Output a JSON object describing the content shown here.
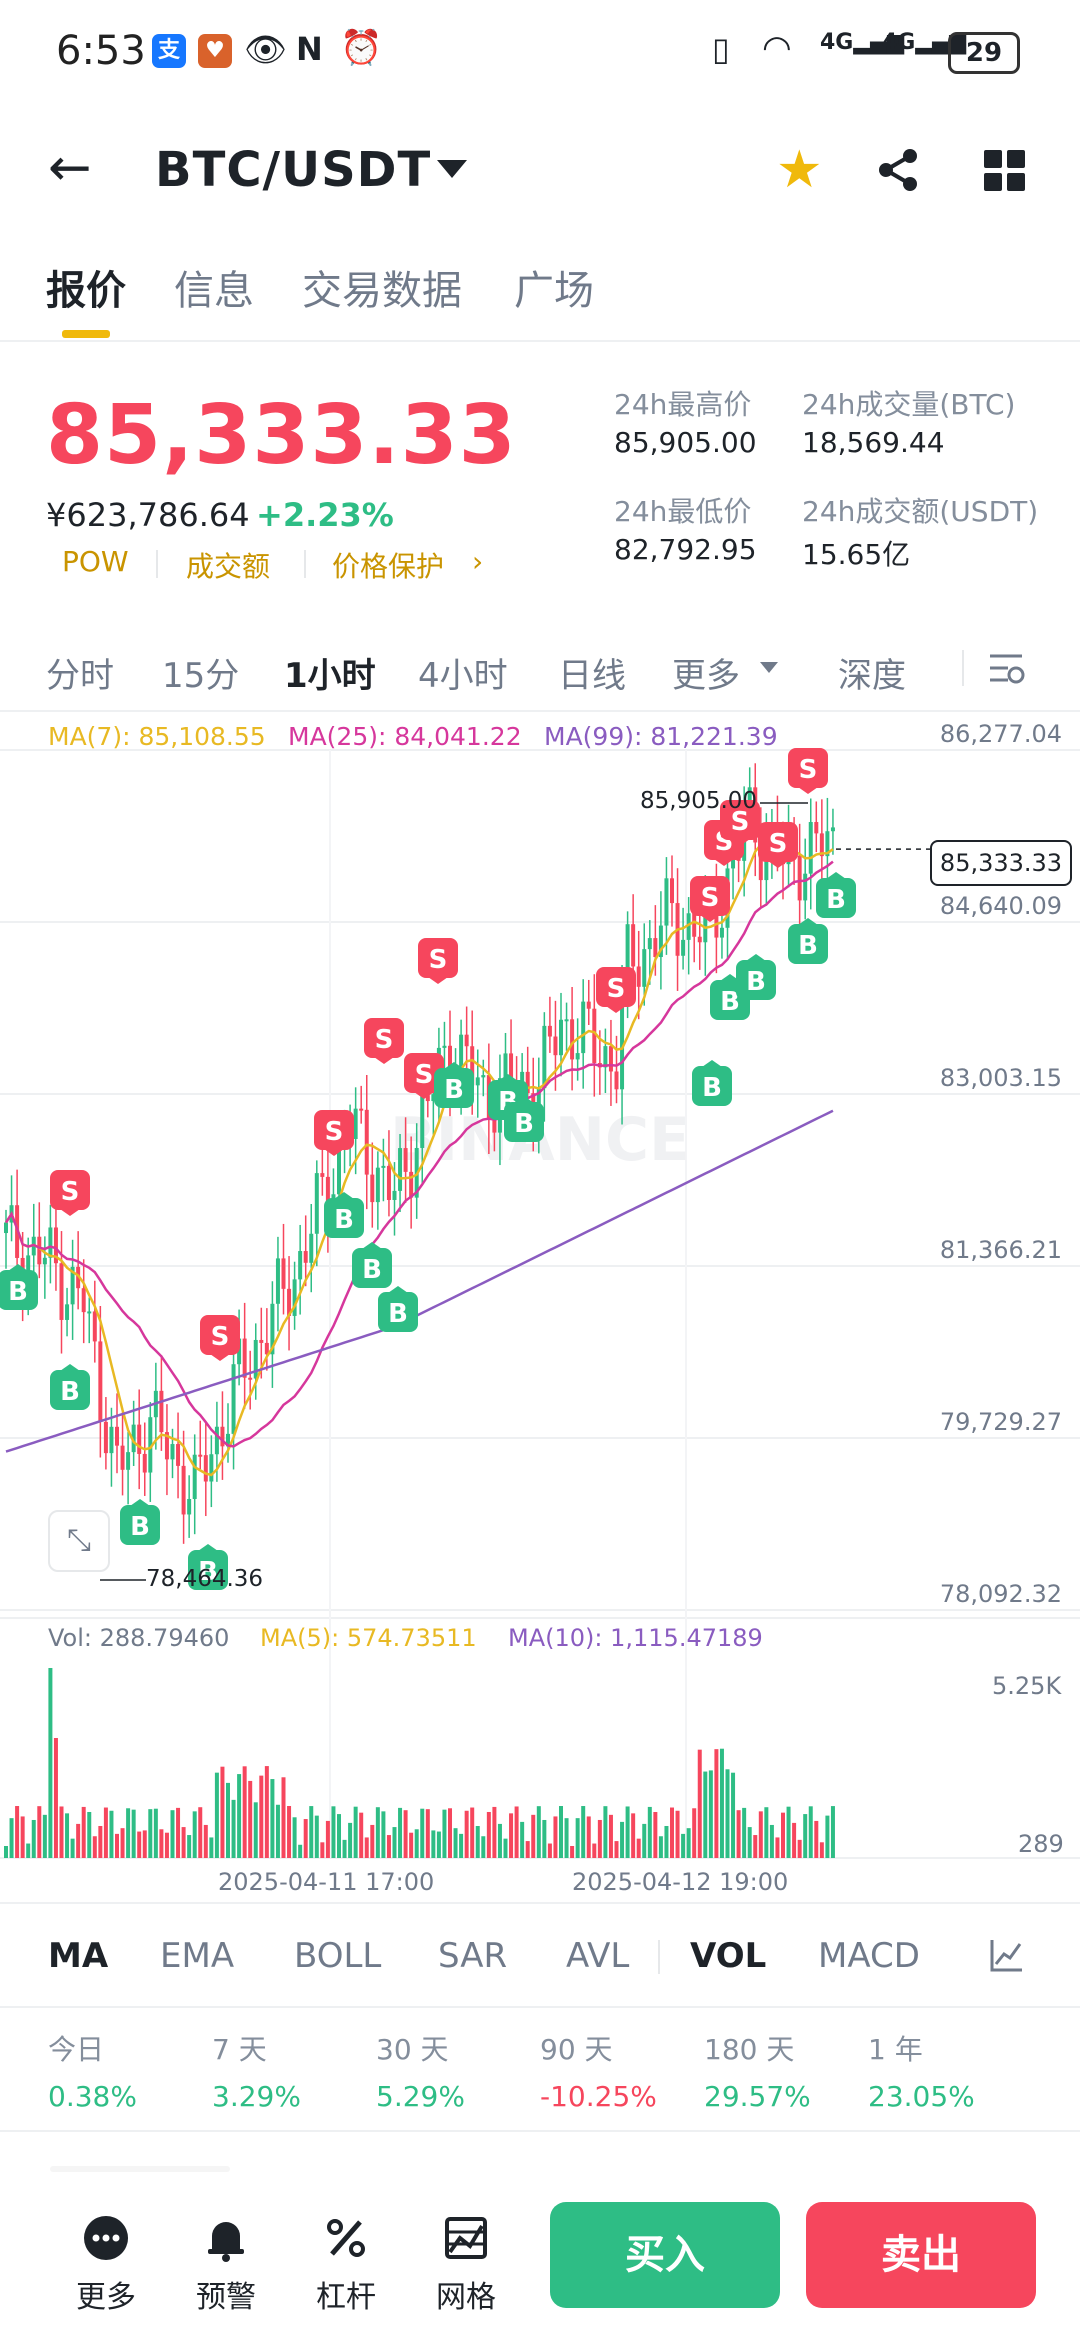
{
  "status_bar": {
    "time": "6:53",
    "battery": "29",
    "signal1": "4G",
    "signal2": "4G"
  },
  "header": {
    "pair": "BTC/USDT"
  },
  "tabs": [
    {
      "label": "报价"
    },
    {
      "label": "信息"
    },
    {
      "label": "交易数据"
    },
    {
      "label": "广场"
    }
  ],
  "price": {
    "last": "85,333.33",
    "cny": "¥623,786.64",
    "change": "+2.23%",
    "chips": [
      "POW",
      "成交额",
      "价格保护"
    ],
    "high_label": "24h最高价",
    "high": "85,905.00",
    "low_label": "24h最低价",
    "low": "82,792.95",
    "vol_btc_label": "24h成交量(BTC)",
    "vol_btc": "18,569.44",
    "vol_usdt_label": "24h成交额(USDT)",
    "vol_usdt": "15.65亿"
  },
  "kline_tabs": [
    {
      "label": "分时"
    },
    {
      "label": "15分"
    },
    {
      "label": "1小时"
    },
    {
      "label": "4小时"
    },
    {
      "label": "日线"
    },
    {
      "label": "更多"
    },
    {
      "label": "深度"
    }
  ],
  "chart_data": {
    "type": "candlestick",
    "ma_labels": [
      "MA(7): 85,108.55",
      "MA(25): 84,041.22",
      "MA(99): 81,221.39"
    ],
    "y_ticks": [
      "86,277.04",
      "84,640.09",
      "83,003.15",
      "81,366.21",
      "79,729.27",
      "78,092.32"
    ],
    "ylim": [
      78092.32,
      86277.04
    ],
    "current_price": "85,333.33",
    "high_marker": "85,905.00",
    "low_marker": "78,464.36",
    "vol_labels": [
      "Vol: 288.79460",
      "MA(5): 574.73511",
      "MA(10): 1,115.47189"
    ],
    "vol_ticks": [
      "5.25K",
      "289"
    ],
    "x_ticks": [
      "2025-04-11 17:00",
      "2025-04-12 19:00"
    ],
    "watermark": "BINANCE",
    "colors": {
      "up": "#2ebd85",
      "down": "#f6465d",
      "ma7": "#e8b923",
      "ma25": "#d6379c",
      "ma99": "#8a5cc0"
    }
  },
  "indicator_tabs": [
    {
      "label": "MA"
    },
    {
      "label": "EMA"
    },
    {
      "label": "BOLL"
    },
    {
      "label": "SAR"
    },
    {
      "label": "AVL"
    },
    {
      "label": "VOL"
    },
    {
      "label": "MACD"
    }
  ],
  "performance": [
    {
      "label": "今日",
      "value": "0.38%"
    },
    {
      "label": "7 天",
      "value": "3.29%"
    },
    {
      "label": "30 天",
      "value": "5.29%"
    },
    {
      "label": "90 天",
      "value": "-10.25%"
    },
    {
      "label": "180 天",
      "value": "29.57%"
    },
    {
      "label": "1 年",
      "value": "23.05%"
    }
  ],
  "bottom_nav": [
    {
      "label": "更多"
    },
    {
      "label": "预警"
    },
    {
      "label": "杠杆"
    },
    {
      "label": "网格"
    }
  ],
  "actions": {
    "buy": "买入",
    "sell": "卖出"
  }
}
